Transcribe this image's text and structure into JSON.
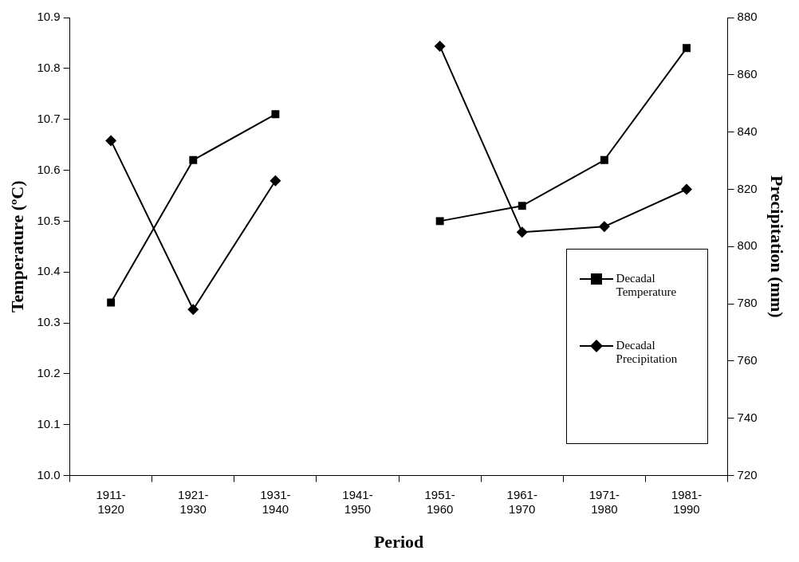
{
  "chart_data": {
    "type": "line",
    "xlabel": "Period",
    "ylabel": "Temperature (ºC)",
    "y2label": "Precipitation (mm)",
    "categories": [
      "1911-\n1920",
      "1921-\n1930",
      "1931-\n1940",
      "1941-\n1950",
      "1951-\n1960",
      "1961-\n1970",
      "1971-\n1980",
      "1981-\n1990"
    ],
    "series": [
      {
        "name": "Decadal Temperature",
        "color": "#000000",
        "marker": "square",
        "values": [
          10.34,
          10.62,
          10.71,
          null,
          10.5,
          10.53,
          10.62,
          10.84
        ]
      },
      {
        "name": "Decadal Precipitation",
        "color": "#000000",
        "marker": "diamond",
        "axis": "y2",
        "values": [
          837,
          778,
          823,
          null,
          870,
          805,
          807,
          820
        ]
      }
    ],
    "ylim": [
      10.0,
      10.9
    ],
    "yticks": [
      {
        "value": 10.0,
        "label": "10.0"
      },
      10.1,
      10.2,
      10.3,
      10.4,
      10.5,
      10.6,
      10.7,
      10.8,
      10.9
    ],
    "y2lim": [
      720,
      880
    ],
    "y2ticks": [
      720,
      740,
      760,
      780,
      800,
      820,
      840,
      860,
      880
    ],
    "grid": false,
    "legend": "bottom right",
    "line_style": "solid"
  }
}
